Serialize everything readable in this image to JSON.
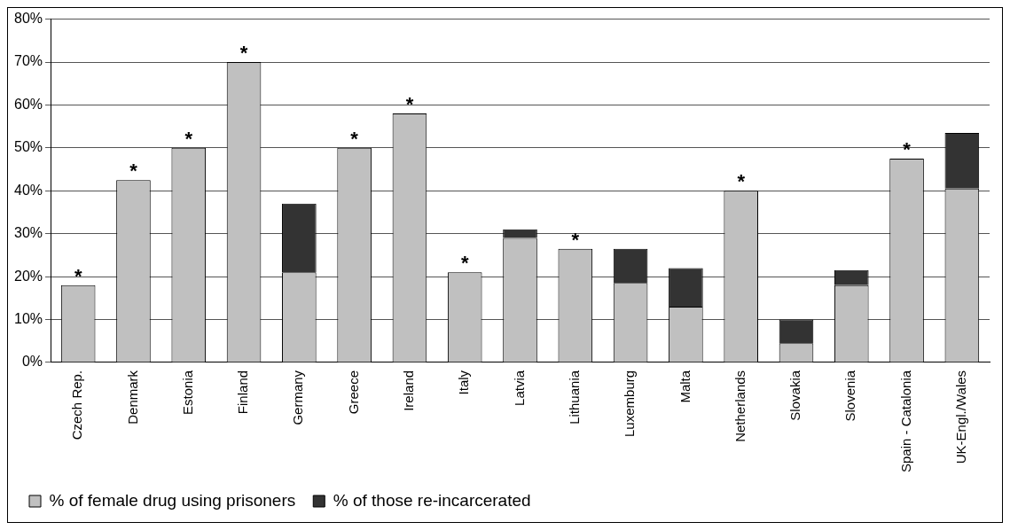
{
  "chart_data": {
    "type": "bar",
    "stacked": true,
    "categories": [
      "Czech Rep.",
      "Denmark",
      "Estonia",
      "Finland",
      "Germany",
      "Greece",
      "Ireland",
      "Italy",
      "Latvia",
      "Lithuania",
      "Luxemburg",
      "Malta",
      "Netherlands",
      "Slovakia",
      "Slovenia",
      "Spain - Catalonia",
      "UK-Engl./Wales"
    ],
    "series": [
      {
        "name": "% of female drug using prisoners",
        "color": "#c0c0c0",
        "values": [
          18,
          42.5,
          50,
          70,
          21,
          50,
          58,
          21,
          29,
          26.5,
          18.5,
          13,
          40,
          4.5,
          18,
          47.5,
          40.5
        ]
      },
      {
        "name": "% of those re-incarcerated",
        "color": "#333333",
        "values": [
          null,
          null,
          null,
          null,
          16,
          null,
          null,
          null,
          2,
          null,
          8,
          9,
          null,
          5.5,
          3.5,
          null,
          13
        ]
      }
    ],
    "ylim": [
      0,
      80
    ],
    "yticks": [
      {
        "value": 0,
        "label": "0%"
      },
      {
        "value": 10,
        "label": "10%"
      },
      {
        "value": 20,
        "label": "20%"
      },
      {
        "value": 30,
        "label": "30%"
      },
      {
        "value": 40,
        "label": "40%"
      },
      {
        "value": 50,
        "label": "50%"
      },
      {
        "value": 60,
        "label": "60%"
      },
      {
        "value": 70,
        "label": "70%"
      },
      {
        "value": 80,
        "label": "80%"
      }
    ],
    "grid": "y",
    "legend": "bottom",
    "annotations": [
      {
        "text": "*",
        "x": "Czech Rep.",
        "y": 18
      },
      {
        "text": "*",
        "x": "Denmark",
        "y": 42.5
      },
      {
        "text": "*",
        "x": "Estonia",
        "y": 50
      },
      {
        "text": "*",
        "x": "Finland",
        "y": 70
      },
      {
        "text": "*",
        "x": "Greece",
        "y": 50
      },
      {
        "text": "*",
        "x": "Ireland",
        "y": 58
      },
      {
        "text": "*",
        "x": "Italy",
        "y": 21
      },
      {
        "text": "*",
        "x": "Lithuania",
        "y": 26.5
      },
      {
        "text": "*",
        "x": "Netherlands",
        "y": 40
      },
      {
        "text": "*",
        "x": "Spain - Catalonia",
        "y": 47.5
      }
    ]
  }
}
